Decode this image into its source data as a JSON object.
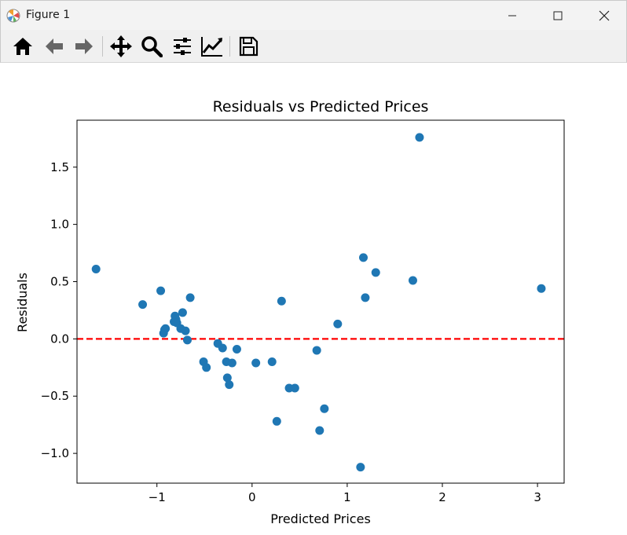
{
  "window": {
    "title": "Figure 1"
  },
  "toolbar": {
    "buttons": [
      "home-icon",
      "back-icon",
      "forward-icon",
      "pan-icon",
      "zoom-icon",
      "subplots-icon",
      "edit-axis-icon",
      "save-icon"
    ]
  },
  "colors": {
    "points": "#1f77b4",
    "refline": "#ff0000"
  },
  "chart_data": {
    "type": "scatter",
    "title": "Residuals vs Predicted Prices",
    "xlabel": "Predicted Prices",
    "ylabel": "Residuals",
    "xlim": [
      -1.84,
      3.28
    ],
    "ylim": [
      -1.26,
      1.91
    ],
    "xticks": [
      -1,
      0,
      1,
      2,
      3
    ],
    "xtick_labels": [
      "−1",
      "0",
      "1",
      "2",
      "3"
    ],
    "yticks": [
      -1.0,
      -0.5,
      0.0,
      0.5,
      1.0,
      1.5
    ],
    "ytick_labels": [
      "−1.0",
      "−0.5",
      "0.0",
      "0.5",
      "1.0",
      "1.5"
    ],
    "grid": false,
    "reference_line": {
      "y": 0,
      "style": "dashed",
      "color": "#ff0000"
    },
    "points": [
      {
        "x": -1.64,
        "y": 0.61
      },
      {
        "x": -1.15,
        "y": 0.3
      },
      {
        "x": -0.96,
        "y": 0.42
      },
      {
        "x": -0.93,
        "y": 0.05
      },
      {
        "x": -0.92,
        "y": 0.08
      },
      {
        "x": -0.91,
        "y": 0.09
      },
      {
        "x": -0.82,
        "y": 0.15
      },
      {
        "x": -0.81,
        "y": 0.2
      },
      {
        "x": -0.8,
        "y": 0.17
      },
      {
        "x": -0.79,
        "y": 0.14
      },
      {
        "x": -0.75,
        "y": 0.09
      },
      {
        "x": -0.73,
        "y": 0.23
      },
      {
        "x": -0.7,
        "y": 0.07
      },
      {
        "x": -0.68,
        "y": -0.01
      },
      {
        "x": -0.65,
        "y": 0.36
      },
      {
        "x": -0.51,
        "y": -0.2
      },
      {
        "x": -0.48,
        "y": -0.25
      },
      {
        "x": -0.36,
        "y": -0.04
      },
      {
        "x": -0.31,
        "y": -0.08
      },
      {
        "x": -0.27,
        "y": -0.2
      },
      {
        "x": -0.26,
        "y": -0.34
      },
      {
        "x": -0.24,
        "y": -0.4
      },
      {
        "x": -0.21,
        "y": -0.21
      },
      {
        "x": -0.16,
        "y": -0.09
      },
      {
        "x": 0.04,
        "y": -0.21
      },
      {
        "x": 0.21,
        "y": -0.2
      },
      {
        "x": 0.26,
        "y": -0.72
      },
      {
        "x": 0.31,
        "y": 0.33
      },
      {
        "x": 0.39,
        "y": -0.43
      },
      {
        "x": 0.45,
        "y": -0.43
      },
      {
        "x": 0.68,
        "y": -0.1
      },
      {
        "x": 0.71,
        "y": -0.8
      },
      {
        "x": 0.76,
        "y": -0.61
      },
      {
        "x": 0.9,
        "y": 0.13
      },
      {
        "x": 1.14,
        "y": -1.12
      },
      {
        "x": 1.17,
        "y": 0.71
      },
      {
        "x": 1.19,
        "y": 0.36
      },
      {
        "x": 1.3,
        "y": 0.58
      },
      {
        "x": 1.69,
        "y": 0.51
      },
      {
        "x": 1.76,
        "y": 1.76
      },
      {
        "x": 3.04,
        "y": 0.44
      }
    ]
  }
}
